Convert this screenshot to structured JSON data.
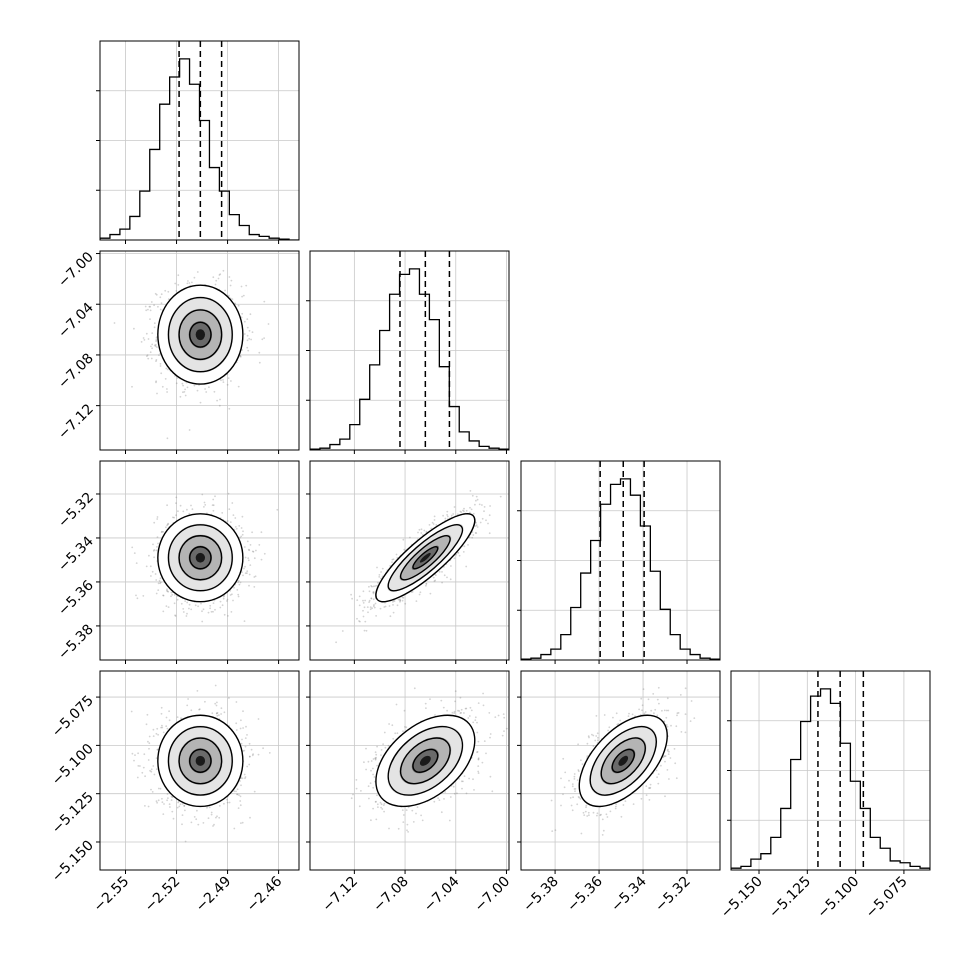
{
  "figure": {
    "type": "corner-plot",
    "n_params": 4
  },
  "chart_data": {
    "type": "corner",
    "parameters": [
      {
        "index": 0,
        "median": -2.506,
        "q16": -2.5185,
        "q84": -2.4935,
        "sigma": 0.0125,
        "range": [
          -2.565,
          -2.448
        ],
        "ticks": [
          -2.55,
          -2.52,
          -2.49,
          -2.46
        ],
        "tick_labels": [
          "−2.55",
          "−2.52",
          "−2.49",
          "−2.46"
        ]
      },
      {
        "index": 1,
        "median": -7.064,
        "q16": -7.084,
        "q84": -7.045,
        "sigma": 0.0195,
        "range": [
          -7.155,
          -6.998
        ],
        "ticks": [
          -7.12,
          -7.08,
          -7.04,
          -7.0
        ],
        "tick_labels": [
          "−7.12",
          "−7.08",
          "−7.04",
          "−7.00"
        ]
      },
      {
        "index": 2,
        "median": -5.349,
        "q16": -5.3595,
        "q84": -5.3395,
        "sigma": 0.01,
        "range": [
          -5.3955,
          -5.305
        ],
        "ticks": [
          -5.38,
          -5.36,
          -5.34,
          -5.32
        ],
        "tick_labels": [
          "−5.38",
          "−5.36",
          "−5.34",
          "−5.32"
        ]
      },
      {
        "index": 3,
        "median": -5.108,
        "q16": -5.1195,
        "q84": -5.096,
        "sigma": 0.0118,
        "range": [
          -5.1645,
          -5.0615
        ],
        "ticks": [
          -5.15,
          -5.125,
          -5.1,
          -5.075
        ],
        "tick_labels": [
          "−5.150",
          "−5.125",
          "−5.100",
          "−5.075"
        ]
      }
    ],
    "correlations": {
      "0-1": 0.0,
      "0-2": 0.0,
      "0-3": 0.0,
      "1-2": 0.85,
      "1-3": 0.45,
      "2-3": 0.55
    },
    "histograms": {
      "0": [
        0.01,
        0.03,
        0.06,
        0.13,
        0.27,
        0.5,
        0.75,
        0.9,
        1.0,
        0.86,
        0.66,
        0.4,
        0.27,
        0.14,
        0.08,
        0.03,
        0.02,
        0.01,
        0.005,
        0.0
      ],
      "1": [
        0.005,
        0.01,
        0.03,
        0.06,
        0.14,
        0.28,
        0.47,
        0.66,
        0.86,
        0.97,
        1.0,
        0.86,
        0.72,
        0.46,
        0.24,
        0.1,
        0.05,
        0.02,
        0.01,
        0.005
      ],
      "2": [
        0.005,
        0.01,
        0.03,
        0.06,
        0.14,
        0.29,
        0.48,
        0.66,
        0.86,
        0.97,
        1.0,
        0.91,
        0.74,
        0.49,
        0.28,
        0.14,
        0.06,
        0.03,
        0.01,
        0.005
      ],
      "3": [
        0.01,
        0.02,
        0.06,
        0.09,
        0.18,
        0.34,
        0.61,
        0.82,
        0.96,
        1.0,
        0.92,
        0.7,
        0.49,
        0.34,
        0.18,
        0.12,
        0.05,
        0.04,
        0.02,
        0.01
      ]
    },
    "quantile_lines": "dashed at 16%, 50%, 84%",
    "contour_levels": [
      0.5,
      1.0,
      1.5,
      2.0
    ],
    "grid": true
  }
}
